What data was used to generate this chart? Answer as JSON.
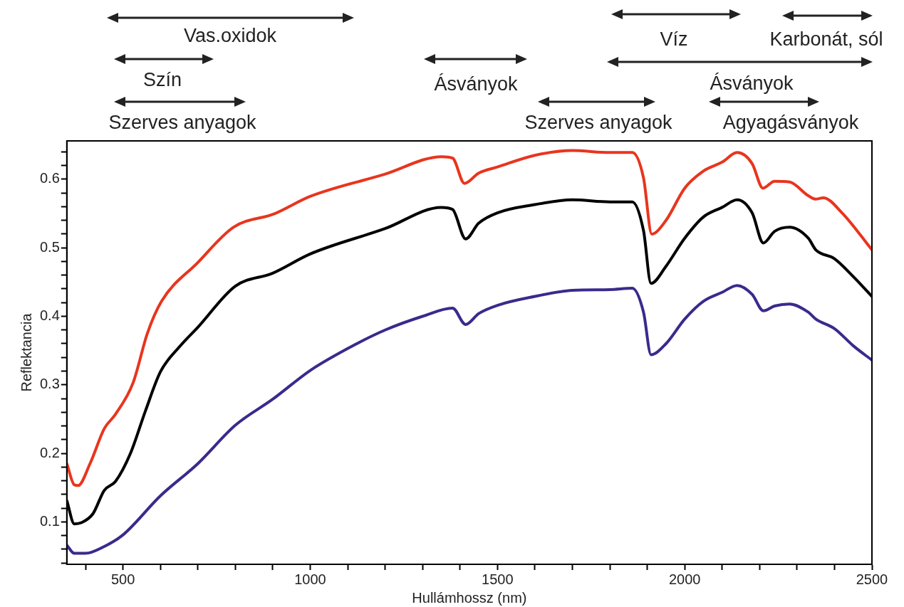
{
  "chart_data": {
    "type": "line",
    "xlabel": "Hullámhossz (nm)",
    "ylabel": "Reflektancia",
    "xlim": [
      350,
      2500
    ],
    "ylim": [
      0.038,
      0.656
    ],
    "xticks": [
      {
        "value": 400,
        "label": null
      },
      500,
      {
        "value": 600,
        "label": null
      },
      {
        "value": 700,
        "label": null
      },
      {
        "value": 800,
        "label": null
      },
      {
        "value": 900,
        "label": null
      },
      1000,
      {
        "value": 1100,
        "label": null
      },
      {
        "value": 1200,
        "label": null
      },
      {
        "value": 1300,
        "label": null
      },
      {
        "value": 1400,
        "label": null
      },
      1500,
      {
        "value": 1600,
        "label": null
      },
      {
        "value": 1700,
        "label": null
      },
      {
        "value": 1800,
        "label": null
      },
      {
        "value": 1900,
        "label": null
      },
      2000,
      {
        "value": 2100,
        "label": null
      },
      {
        "value": 2200,
        "label": null
      },
      {
        "value": 2300,
        "label": null
      },
      {
        "value": 2400,
        "label": null
      },
      2500
    ],
    "yticks": [
      {
        "value": 0.04,
        "label": null
      },
      {
        "value": 0.06,
        "label": null
      },
      {
        "value": 0.08,
        "label": null
      },
      0.1,
      {
        "value": 0.12,
        "label": null
      },
      {
        "value": 0.14,
        "label": null
      },
      {
        "value": 0.16,
        "label": null
      },
      {
        "value": 0.18,
        "label": null
      },
      0.2,
      {
        "value": 0.22,
        "label": null
      },
      {
        "value": 0.24,
        "label": null
      },
      {
        "value": 0.26,
        "label": null
      },
      {
        "value": 0.28,
        "label": null
      },
      0.3,
      {
        "value": 0.32,
        "label": null
      },
      {
        "value": 0.34,
        "label": null
      },
      {
        "value": 0.36,
        "label": null
      },
      {
        "value": 0.38,
        "label": null
      },
      0.4,
      {
        "value": 0.42,
        "label": null
      },
      {
        "value": 0.44,
        "label": null
      },
      {
        "value": 0.46,
        "label": null
      },
      {
        "value": 0.48,
        "label": null
      },
      0.5,
      {
        "value": 0.52,
        "label": null
      },
      {
        "value": 0.54,
        "label": null
      },
      {
        "value": 0.56,
        "label": null
      },
      {
        "value": 0.58,
        "label": null
      },
      0.6,
      {
        "value": 0.62,
        "label": null
      },
      {
        "value": 0.64,
        "label": null
      }
    ],
    "grid": false,
    "legend": false,
    "marker": "none",
    "line_style": "solid",
    "series": [
      {
        "color": "#e8351e",
        "x": [
          350,
          370,
          380,
          412,
          450,
          480,
          527,
          565,
          603,
          699,
          795,
          906,
          1000,
          1197,
          1351,
          1380,
          1412,
          1450,
          1500,
          1600,
          1700,
          1800,
          1860,
          1890,
          1912,
          1950,
          2000,
          2050,
          2100,
          2140,
          2180,
          2209,
          2240,
          2280,
          2330,
          2350,
          2370,
          2420,
          2500
        ],
        "values": [
          0.185,
          0.154,
          0.153,
          0.185,
          0.236,
          0.257,
          0.303,
          0.375,
          0.422,
          0.478,
          0.53,
          0.55,
          0.575,
          0.607,
          0.633,
          0.631,
          0.594,
          0.609,
          0.618,
          0.635,
          0.642,
          0.639,
          0.639,
          0.602,
          0.52,
          0.54,
          0.587,
          0.612,
          0.625,
          0.639,
          0.623,
          0.587,
          0.597,
          0.596,
          0.576,
          0.571,
          0.573,
          0.551,
          0.497
        ]
      },
      {
        "color": "#000000",
        "x": [
          350,
          370,
          390,
          420,
          450,
          480,
          520,
          560,
          600,
          650,
          700,
          800,
          900,
          1000,
          1200,
          1350,
          1380,
          1415,
          1450,
          1500,
          1600,
          1700,
          1800,
          1860,
          1890,
          1910,
          1950,
          2000,
          2050,
          2100,
          2140,
          2180,
          2210,
          2240,
          2280,
          2330,
          2350,
          2400,
          2450,
          2500
        ],
        "values": [
          0.131,
          0.097,
          0.099,
          0.112,
          0.146,
          0.159,
          0.2,
          0.262,
          0.319,
          0.355,
          0.384,
          0.444,
          0.463,
          0.491,
          0.528,
          0.559,
          0.556,
          0.513,
          0.536,
          0.551,
          0.563,
          0.57,
          0.567,
          0.567,
          0.525,
          0.448,
          0.473,
          0.514,
          0.545,
          0.559,
          0.57,
          0.551,
          0.507,
          0.524,
          0.53,
          0.514,
          0.497,
          0.484,
          0.458,
          0.429
        ]
      },
      {
        "color": "#3a2a8c",
        "x": [
          350,
          370,
          400,
          450,
          500,
          600,
          700,
          800,
          900,
          1000,
          1100,
          1200,
          1300,
          1380,
          1415,
          1450,
          1500,
          1600,
          1700,
          1800,
          1860,
          1890,
          1910,
          1950,
          2000,
          2050,
          2100,
          2140,
          2180,
          2210,
          2240,
          2280,
          2330,
          2350,
          2400,
          2450,
          2500
        ],
        "values": [
          0.066,
          0.054,
          0.054,
          0.064,
          0.081,
          0.138,
          0.185,
          0.241,
          0.279,
          0.321,
          0.353,
          0.38,
          0.4,
          0.412,
          0.388,
          0.404,
          0.416,
          0.429,
          0.438,
          0.439,
          0.441,
          0.406,
          0.344,
          0.36,
          0.396,
          0.422,
          0.435,
          0.445,
          0.432,
          0.408,
          0.415,
          0.418,
          0.406,
          0.396,
          0.382,
          0.357,
          0.336
        ]
      }
    ],
    "annotations": [
      "Vas.oxidok",
      "Víz",
      "Karbonát, sól",
      "Szín",
      "Ásványok",
      "Ásványok",
      "Szerves anyagok",
      "Szerves anyagok",
      "Agyagásványok"
    ]
  }
}
